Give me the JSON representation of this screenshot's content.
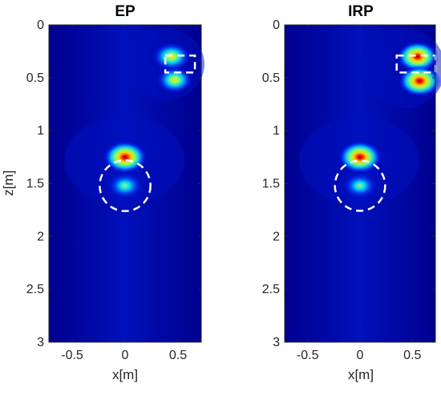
{
  "chart_data": [
    {
      "type": "heatmap",
      "title": "EP",
      "xlabel": "x[m]",
      "ylabel": "z[m]",
      "xlim": [
        -0.72,
        0.72
      ],
      "ylim": [
        0,
        3
      ],
      "y_reversed": true,
      "xticks": [
        -0.5,
        0,
        0.5
      ],
      "yticks": [
        0,
        0.5,
        1,
        1.5,
        2,
        2.5,
        3
      ],
      "xtick_labels": [
        "-0.5",
        "0",
        "0.5"
      ],
      "ytick_labels": [
        "0",
        "0.5",
        "1",
        "1.5",
        "2",
        "2.5",
        "3"
      ],
      "colormap": "jet",
      "hotspots": [
        {
          "x": 0.44,
          "z": 0.3,
          "intensity": 0.75
        },
        {
          "x": 0.47,
          "z": 0.52,
          "intensity": 0.65
        },
        {
          "x": 0.0,
          "z": 1.25,
          "intensity": 1.0
        },
        {
          "x": 0.0,
          "z": 1.52,
          "intensity": 0.6
        }
      ],
      "annotations": [
        {
          "shape": "dashed-rectangle",
          "x0": 0.38,
          "x1": 0.66,
          "z0": 0.29,
          "z1": 0.45
        },
        {
          "shape": "dashed-circle",
          "cx": 0.0,
          "cz": 1.52,
          "r": 0.24
        }
      ]
    },
    {
      "type": "heatmap",
      "title": "IRP",
      "xlabel": "x[m]",
      "ylabel": "",
      "xlim": [
        -0.72,
        0.72
      ],
      "ylim": [
        0,
        3
      ],
      "y_reversed": true,
      "xticks": [
        -0.5,
        0,
        0.5
      ],
      "yticks": [
        0,
        0.5,
        1,
        1.5,
        2,
        2.5,
        3
      ],
      "xtick_labels": [
        "-0.5",
        "0",
        "0.5"
      ],
      "ytick_labels": [
        "0",
        "0.5",
        "1",
        "1.5",
        "2",
        "2.5",
        "3"
      ],
      "colormap": "jet",
      "hotspots": [
        {
          "x": 0.55,
          "z": 0.3,
          "intensity": 0.9
        },
        {
          "x": 0.57,
          "z": 0.53,
          "intensity": 0.95
        },
        {
          "x": 0.0,
          "z": 1.25,
          "intensity": 1.0
        },
        {
          "x": 0.0,
          "z": 1.52,
          "intensity": 0.55
        }
      ],
      "annotations": [
        {
          "shape": "dashed-rectangle",
          "x0": 0.35,
          "x1": 0.72,
          "z0": 0.29,
          "z1": 0.45
        },
        {
          "shape": "dashed-circle",
          "cx": 0.0,
          "cz": 1.52,
          "r": 0.24
        }
      ]
    }
  ],
  "colors": {
    "background": "#00008f",
    "annotation": "#ffffff",
    "axis": "#262626"
  }
}
